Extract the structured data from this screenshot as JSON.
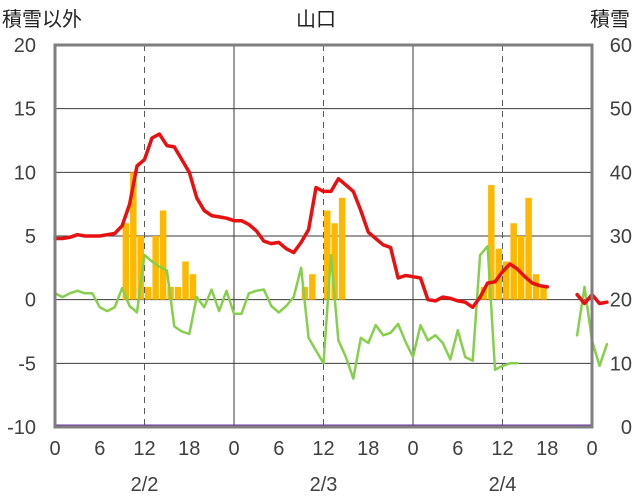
{
  "chart_data": {
    "type": "bar",
    "title": "山口",
    "left_axis_label": "積雪以外",
    "right_axis_label": "積雪",
    "y_left": {
      "min": -10,
      "max": 20,
      "ticks": [
        "20",
        "15",
        "10",
        "5",
        "0",
        "-5",
        "-10"
      ]
    },
    "y_right": {
      "min": 0,
      "max": 60,
      "ticks": [
        "60",
        "50",
        "40",
        "30",
        "20",
        "10",
        "0"
      ]
    },
    "x_hour_ticks": [
      "0",
      "6",
      "12",
      "18",
      "0",
      "6",
      "12",
      "18",
      "0",
      "6",
      "12",
      "18",
      "0"
    ],
    "date_labels": [
      "2/2",
      "2/3",
      "2/4"
    ],
    "grid": true,
    "precip_bars": {
      "color": "#ffb800",
      "hours": [
        9,
        10,
        11,
        12,
        13,
        14,
        15,
        16,
        17,
        18,
        19,
        33,
        34,
        35,
        36,
        37,
        38,
        39,
        57,
        58,
        59,
        60,
        61,
        62,
        63,
        64,
        65,
        66
      ],
      "values": [
        6,
        10,
        5,
        1,
        5,
        7,
        1,
        1,
        3,
        2,
        0,
        1,
        2,
        0,
        7,
        6,
        8,
        0,
        1,
        9,
        4,
        3,
        6,
        5,
        8,
        2,
        1,
        0
      ]
    },
    "temperature": {
      "color": "#e81010",
      "hours": [
        0,
        1,
        2,
        3,
        4,
        5,
        6,
        7,
        8,
        9,
        10,
        11,
        12,
        13,
        14,
        15,
        16,
        17,
        18,
        19,
        20,
        21,
        22,
        23,
        24,
        25,
        26,
        27,
        28,
        29,
        30,
        31,
        32,
        33,
        34,
        35,
        36,
        37,
        38,
        39,
        40,
        41,
        42,
        43,
        44,
        45,
        46,
        47,
        48,
        49,
        50,
        51,
        52,
        53,
        54,
        55,
        56,
        57,
        58,
        59,
        60,
        61,
        62,
        63,
        64,
        65,
        66,
        67
      ],
      "values": [
        4.8,
        4.8,
        4.9,
        5.1,
        5.0,
        5.0,
        5.0,
        5.1,
        5.2,
        5.8,
        7.5,
        10.5,
        11.0,
        12.7,
        13.0,
        12.1,
        12.0,
        11.0,
        10.0,
        8.0,
        7.0,
        6.6,
        6.5,
        6.4,
        6.2,
        6.2,
        5.9,
        5.4,
        4.6,
        4.4,
        4.5,
        4.0,
        3.7,
        4.5,
        5.5,
        8.8,
        8.5,
        8.5,
        9.5,
        9.0,
        8.5,
        7.0,
        5.3,
        4.8,
        4.3,
        4.1,
        1.7,
        1.9,
        1.8,
        1.7,
        0,
        -0.1,
        0.2,
        0.1,
        -0.1,
        -0.2,
        -0.6,
        0.2,
        1.3,
        1.4,
        2.2,
        2.8,
        2.4,
        1.8,
        1.3,
        1.1,
        1.0,
        null
      ]
    },
    "temperature_tail": {
      "hours": [
        70,
        71,
        72,
        73,
        74
      ],
      "values": [
        0.4,
        -0.3,
        0.4,
        -0.3,
        -0.2
      ]
    },
    "wind": {
      "color": "#86cf4b",
      "hours": [
        0,
        1,
        2,
        3,
        4,
        5,
        6,
        7,
        8,
        9,
        10,
        11,
        12,
        13,
        14,
        15,
        16,
        17,
        18,
        19,
        20,
        21,
        22,
        23,
        24,
        25,
        26,
        27,
        28,
        29,
        30,
        31,
        32,
        33,
        34,
        35,
        36,
        37,
        38,
        39,
        40,
        41,
        42,
        43,
        44,
        45,
        46,
        47,
        48,
        49,
        50,
        51,
        52,
        53,
        54,
        55,
        56,
        57,
        58,
        59,
        60,
        61,
        62,
        63,
        64,
        65,
        66
      ],
      "values": [
        0.5,
        0.2,
        0.5,
        0.7,
        0.5,
        0.5,
        -0.6,
        -0.9,
        -0.6,
        0.9,
        -0.5,
        -1.0,
        3.5,
        3.0,
        2.6,
        2.3,
        -2.1,
        -2.5,
        -2.7,
        0.2,
        -0.6,
        0.8,
        -0.9,
        0.7,
        -1.1,
        -1.1,
        0.5,
        0.7,
        0.8,
        -0.5,
        -1.0,
        -0.5,
        0.2,
        2.5,
        -3.0,
        -4.0,
        -5.0,
        3.5,
        -3.2,
        -4.5,
        -6.2,
        -3.0,
        -3.4,
        -2.0,
        -2.8,
        -2.6,
        -1.9,
        -3.3,
        -4.5,
        -2.0,
        -3.2,
        -2.8,
        -3.4,
        -4.7,
        -2.4,
        -4.5,
        -4.8,
        3.5,
        4.2,
        -5.5,
        -5.2,
        -5.0,
        -5.0,
        null,
        null,
        null,
        null
      ]
    },
    "wind_tail": {
      "hours": [
        70,
        71,
        72,
        73,
        74
      ],
      "values": [
        -2.8,
        1.0,
        -3.2,
        -5.2,
        -3.5
      ]
    },
    "snow_depth": {
      "color": "#7030a0",
      "value_right_axis": 0
    }
  }
}
